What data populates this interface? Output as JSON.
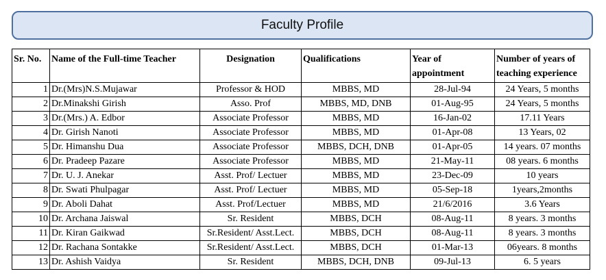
{
  "title": "Faculty Profile",
  "columns": {
    "sr": "Sr. No.",
    "name": "Name of the Full-time Teacher",
    "designation": "Designation",
    "qualifications": "Qualifications",
    "year_line1": "Year of",
    "year_line2": "appointment",
    "exp_line1": "Number of years of",
    "exp_line2": "teaching experience"
  },
  "rows": [
    {
      "sr": "1",
      "name": "Dr.(Mrs)N.S.Mujawar",
      "designation": "Professor  & HOD",
      "qualifications": "MBBS, MD",
      "year": "28-Jul-94",
      "experience": "24 Years, 5  months"
    },
    {
      "sr": "2",
      "name": "Dr.Minakshi Girish",
      "designation": "Asso. Prof",
      "qualifications": "MBBS, MD, DNB",
      "year": "01-Aug-95",
      "experience": "24 Years, 5  months"
    },
    {
      "sr": "3",
      "name": "Dr.(Mrs.) A. Edbor",
      "designation": "Associate Professor",
      "qualifications": "MBBS, MD",
      "year": "16-Jan-02",
      "experience": "17.11 Years"
    },
    {
      "sr": "4",
      "name": "Dr. Girish Nanoti",
      "designation": "Associate Professor",
      "qualifications": "MBBS, MD",
      "year": "01-Apr-08",
      "experience": "13 Years,    02"
    },
    {
      "sr": "5",
      "name": "Dr. Himanshu Dua",
      "designation": "Associate Professor",
      "qualifications": "MBBS, DCH, DNB",
      "year": "01-Apr-05",
      "experience": "14 years.   07 months"
    },
    {
      "sr": "6",
      "name": "Dr. Pradeep Pazare",
      "designation": "Associate Professor",
      "qualifications": "MBBS, MD",
      "year": "21-May-11",
      "experience": "08 years.   6 months"
    },
    {
      "sr": "7",
      "name": "Dr. U. J. Anekar",
      "designation": "Asst. Prof/ Lectuer",
      "qualifications": "MBBS, MD",
      "year": "23-Dec-09",
      "experience": "10 years"
    },
    {
      "sr": "8",
      "name": "Dr. Swati Phulpagar",
      "designation": "Asst. Prof/ Lectuer",
      "qualifications": "MBBS, MD",
      "year": "05-Sep-18",
      "experience": "1years,2months"
    },
    {
      "sr": "9",
      "name": "Dr. Aboli Dahat",
      "designation": "Asst. Prof/Lectuer",
      "qualifications": "MBBS, MD",
      "year": "21/6/2016",
      "experience": "3.6 Years"
    },
    {
      "sr": "10",
      "name": "Dr. Archana Jaiswal",
      "designation": "Sr. Resident",
      "qualifications": "MBBS, DCH",
      "year": "08-Aug-11",
      "experience": "8 years.  3 months"
    },
    {
      "sr": "11",
      "name": "Dr. Kiran Gaikwad",
      "designation": "Sr.Resident/ Asst.Lect.",
      "qualifications": "MBBS, DCH",
      "year": "08-Aug-11",
      "experience": "8 years.  3 months"
    },
    {
      "sr": "12",
      "name": "Dr. Rachana Sontakke",
      "designation": "Sr.Resident/ Asst.Lect.",
      "qualifications": "MBBS, DCH",
      "year": "01-Mar-13",
      "experience": "06years.  8 months"
    },
    {
      "sr": "13",
      "name": "Dr. Ashish Vaidya",
      "designation": "Sr. Resident",
      "qualifications": "MBBS, DCH, DNB",
      "year": "09-Jul-13",
      "experience": "6. 5 years"
    }
  ]
}
